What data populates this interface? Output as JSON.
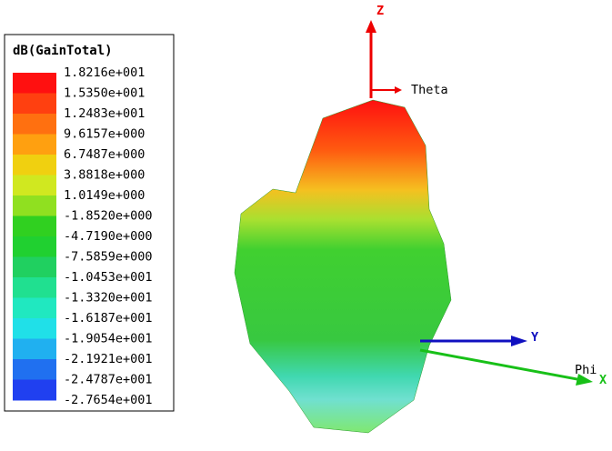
{
  "legend": {
    "title": "dB(GainTotal)",
    "labels": [
      "1.8216e+001",
      "1.5350e+001",
      "1.2483e+001",
      "9.6157e+000",
      "6.7487e+000",
      "3.8818e+000",
      "1.0149e+000",
      "-1.8520e+000",
      "-4.7190e+000",
      "-7.5859e+000",
      "-1.0453e+001",
      "-1.3320e+001",
      "-1.6187e+001",
      "-1.9054e+001",
      "-2.1921e+001",
      "-2.4787e+001",
      "-2.7654e+001"
    ]
  },
  "axes": {
    "z": "Z",
    "theta": "Theta",
    "y": "Y",
    "phi": "Phi",
    "x": "X"
  }
}
